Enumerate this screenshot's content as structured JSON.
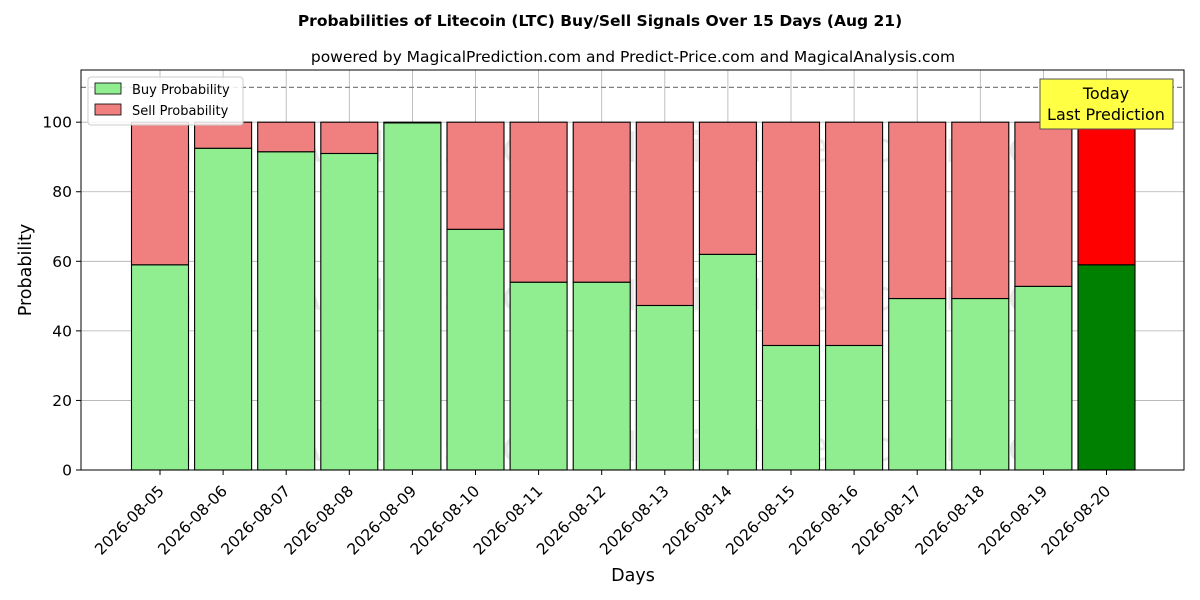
{
  "chart_data": {
    "type": "bar",
    "stacked": true,
    "title": "Probabilities of Litecoin (LTC) Buy/Sell Signals Over 15 Days (Aug 21)",
    "subtitle": "powered by MagicalPrediction.com and Predict-Price.com and MagicalAnalysis.com",
    "xlabel": "Days",
    "ylabel": "Probability",
    "ylim": [
      0,
      115
    ],
    "yticks": [
      0,
      20,
      40,
      60,
      80,
      100
    ],
    "grid": true,
    "legend_position": "top-left",
    "reference_line": 110,
    "categories": [
      "2026-08-05",
      "2026-08-06",
      "2026-08-07",
      "2026-08-08",
      "2026-08-09",
      "2026-08-10",
      "2026-08-11",
      "2026-08-12",
      "2026-08-13",
      "2026-08-14",
      "2026-08-15",
      "2026-08-16",
      "2026-08-17",
      "2026-08-18",
      "2026-08-19",
      "2026-08-20"
    ],
    "series": [
      {
        "name": "Buy Probability",
        "color": "#90ee90",
        "highlight_color": "#008000",
        "values": [
          59,
          92.5,
          91.5,
          91,
          99.8,
          69.2,
          54,
          54,
          47.3,
          62,
          35.8,
          35.8,
          49.3,
          49.3,
          52.8,
          59
        ]
      },
      {
        "name": "Sell Probability",
        "color": "#f08080",
        "highlight_color": "#ff0000",
        "values": [
          41,
          7.5,
          8.5,
          9,
          0.2,
          30.8,
          46,
          46,
          52.7,
          38,
          64.2,
          64.2,
          50.7,
          50.7,
          47.2,
          41
        ]
      }
    ],
    "highlight_index": 15,
    "annotation": {
      "line1": "Today",
      "line2": "Last Prediction",
      "bg_color": "#ffff44"
    },
    "watermarks": [
      "MagicalAnalysis.com",
      "MagicalPrediction.com"
    ]
  }
}
